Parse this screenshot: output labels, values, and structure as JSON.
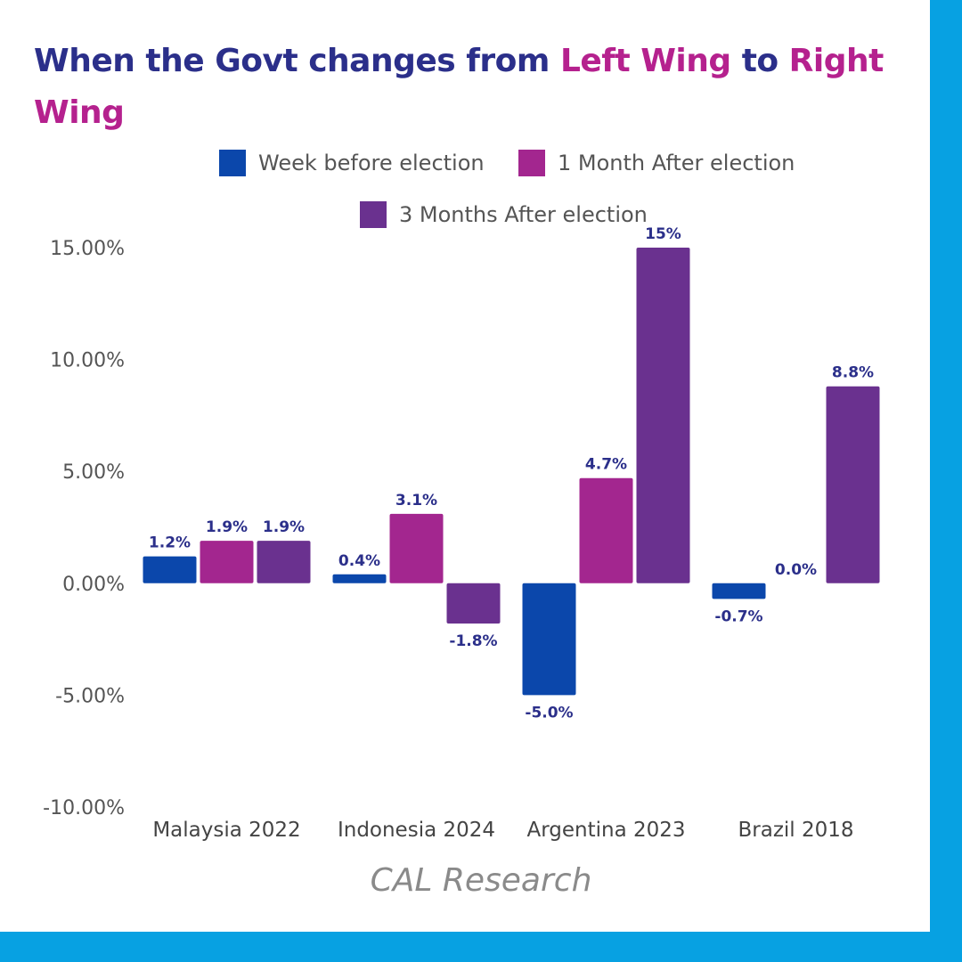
{
  "title": {
    "part1": "When the Govt changes from ",
    "left_wing": "Left Wing",
    "part2": " to ",
    "right_wing": "Right Wing"
  },
  "colors": {
    "title_main": "#2b2f8a",
    "title_accent": "#b5218e",
    "frame": "#07a1e2"
  },
  "chart_data": {
    "type": "bar",
    "categories": [
      "Malaysia 2022",
      "Indonesia 2024",
      "Argentina 2023",
      "Brazil 2018"
    ],
    "series": [
      {
        "name": "Week before election",
        "color": "#0b47ab",
        "values": [
          1.2,
          0.4,
          -5.0,
          -0.7
        ],
        "labels": [
          "1.2%",
          "0.4%",
          "-5.0%",
          "-0.7%"
        ]
      },
      {
        "name": "1 Month After election",
        "color": "#a3268f",
        "values": [
          1.9,
          3.1,
          4.7,
          0.0
        ],
        "labels": [
          "1.9%",
          "3.1%",
          "4.7%",
          "0.0%"
        ]
      },
      {
        "name": "3 Months After election",
        "color": "#6a318f",
        "values": [
          1.9,
          -1.8,
          15,
          8.8
        ],
        "labels": [
          "1.9%",
          "-1.8%",
          "15%",
          "8.8%"
        ]
      }
    ],
    "ylim": [
      -10,
      15
    ],
    "yticks": [
      15,
      10,
      5,
      0,
      -5,
      -10
    ],
    "ytick_labels": [
      "15.00%",
      "10.00%",
      "5.00%",
      "0.00%",
      "-5.00%",
      "-10.00%"
    ],
    "grid": false,
    "legend": "top-center",
    "data_label_color": "#2b2f8a"
  },
  "footer": {
    "source": "CAL Research"
  }
}
